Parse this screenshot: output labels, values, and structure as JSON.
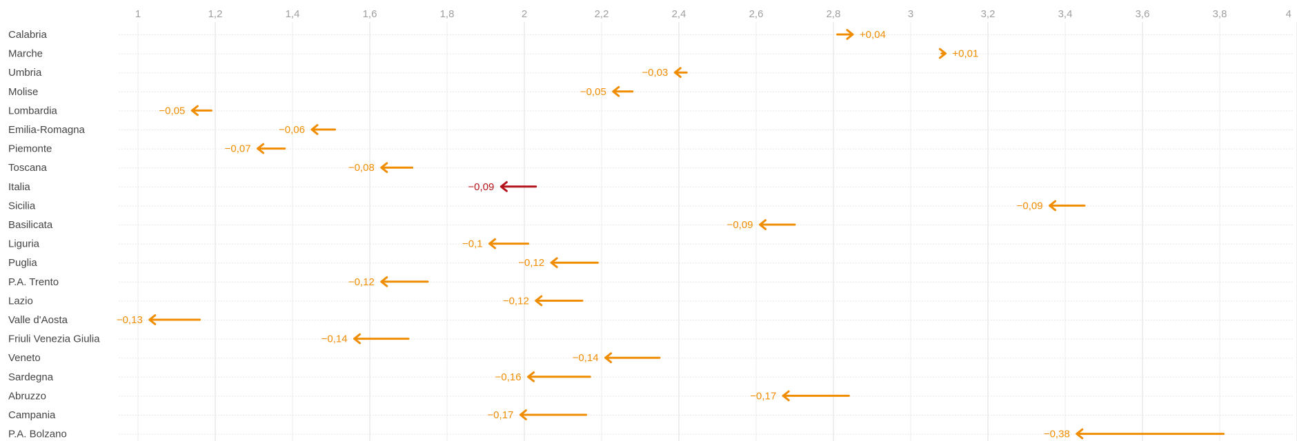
{
  "chart_data": {
    "type": "arrow",
    "xlim": [
      0.9,
      4
    ],
    "x_ticks": [
      {
        "value": 1,
        "label": "1"
      },
      {
        "value": 1.2,
        "label": "1,2"
      },
      {
        "value": 1.4,
        "label": "1,4"
      },
      {
        "value": 1.6,
        "label": "1,6"
      },
      {
        "value": 1.8,
        "label": "1,8"
      },
      {
        "value": 2,
        "label": "2"
      },
      {
        "value": 2.2,
        "label": "2,2"
      },
      {
        "value": 2.4,
        "label": "2,4"
      },
      {
        "value": 2.6,
        "label": "2,6"
      },
      {
        "value": 2.8,
        "label": "2,8"
      },
      {
        "value": 3,
        "label": "3"
      },
      {
        "value": 3.2,
        "label": "3,2"
      },
      {
        "value": 3.4,
        "label": "3,4"
      },
      {
        "value": 3.6,
        "label": "3,6"
      },
      {
        "value": 3.8,
        "label": "3,8"
      },
      {
        "value": 4,
        "label": "4"
      }
    ],
    "grid": true,
    "colors": {
      "region": "#f08c00",
      "national": "#b3121b"
    },
    "rows": [
      {
        "name": "Calabria",
        "start": 2.81,
        "end": 2.85,
        "label": "+0,04",
        "highlight": false
      },
      {
        "name": "Marche",
        "start": 3.08,
        "end": 3.09,
        "label": "+0,01",
        "highlight": false
      },
      {
        "name": "Umbria",
        "start": 2.42,
        "end": 2.39,
        "label": "−0,03",
        "highlight": false
      },
      {
        "name": "Molise",
        "start": 2.28,
        "end": 2.23,
        "label": "−0,05",
        "highlight": false
      },
      {
        "name": "Lombardia",
        "start": 1.19,
        "end": 1.14,
        "label": "−0,05",
        "highlight": false
      },
      {
        "name": "Emilia-Romagna",
        "start": 1.51,
        "end": 1.45,
        "label": "−0,06",
        "highlight": false
      },
      {
        "name": "Piemonte",
        "start": 1.38,
        "end": 1.31,
        "label": "−0,07",
        "highlight": false
      },
      {
        "name": "Toscana",
        "start": 1.71,
        "end": 1.63,
        "label": "−0,08",
        "highlight": false
      },
      {
        "name": "Italia",
        "start": 2.03,
        "end": 1.94,
        "label": "−0,09",
        "highlight": true
      },
      {
        "name": "Sicilia",
        "start": 3.45,
        "end": 3.36,
        "label": "−0,09",
        "highlight": false
      },
      {
        "name": "Basilicata",
        "start": 2.7,
        "end": 2.61,
        "label": "−0,09",
        "highlight": false
      },
      {
        "name": "Liguria",
        "start": 2.01,
        "end": 1.91,
        "label": "−0,1",
        "highlight": false
      },
      {
        "name": "Puglia",
        "start": 2.19,
        "end": 2.07,
        "label": "−0,12",
        "highlight": false
      },
      {
        "name": "P.A. Trento",
        "start": 1.75,
        "end": 1.63,
        "label": "−0,12",
        "highlight": false
      },
      {
        "name": "Lazio",
        "start": 2.15,
        "end": 2.03,
        "label": "−0,12",
        "highlight": false
      },
      {
        "name": "Valle d'Aosta",
        "start": 1.16,
        "end": 1.03,
        "label": "−0,13",
        "highlight": false
      },
      {
        "name": "Friuli Venezia Giulia",
        "start": 1.7,
        "end": 1.56,
        "label": "−0,14",
        "highlight": false
      },
      {
        "name": "Veneto",
        "start": 2.35,
        "end": 2.21,
        "label": "−0,14",
        "highlight": false
      },
      {
        "name": "Sardegna",
        "start": 2.17,
        "end": 2.01,
        "label": "−0,16",
        "highlight": false
      },
      {
        "name": "Abruzzo",
        "start": 2.84,
        "end": 2.67,
        "label": "−0,17",
        "highlight": false
      },
      {
        "name": "Campania",
        "start": 2.16,
        "end": 1.99,
        "label": "−0,17",
        "highlight": false
      },
      {
        "name": "P.A. Bolzano",
        "start": 3.81,
        "end": 3.43,
        "label": "−0,38",
        "highlight": false
      }
    ]
  }
}
